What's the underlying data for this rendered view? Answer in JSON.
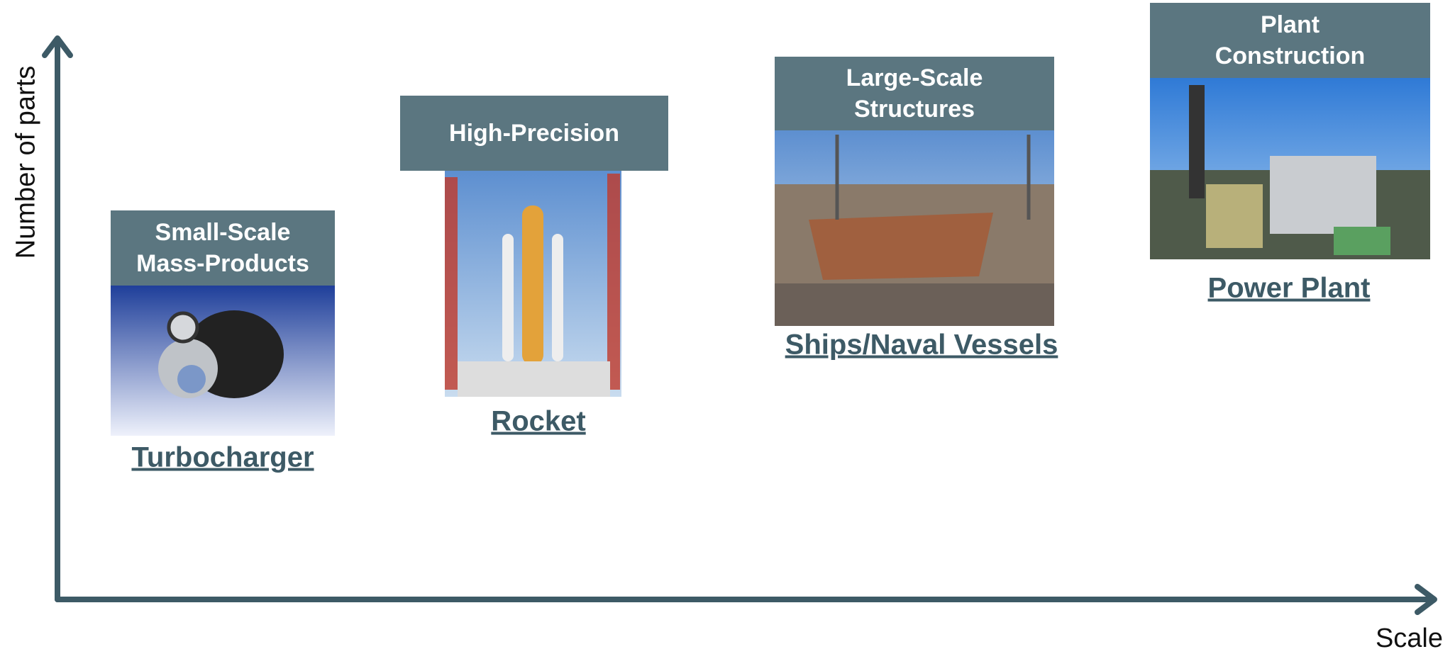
{
  "axes": {
    "y_label": "Number of parts",
    "x_label": "Scale"
  },
  "items": [
    {
      "header": [
        "Small-Scale",
        "Mass-Products"
      ],
      "label": "Turbocharger"
    },
    {
      "header": [
        "High-Precision"
      ],
      "label": "Rocket"
    },
    {
      "header": [
        "Large-Scale",
        "Structures"
      ],
      "label": "Ships/Naval Vessels"
    },
    {
      "header": [
        "Plant",
        "Construction"
      ],
      "label": "Power Plant"
    }
  ]
}
